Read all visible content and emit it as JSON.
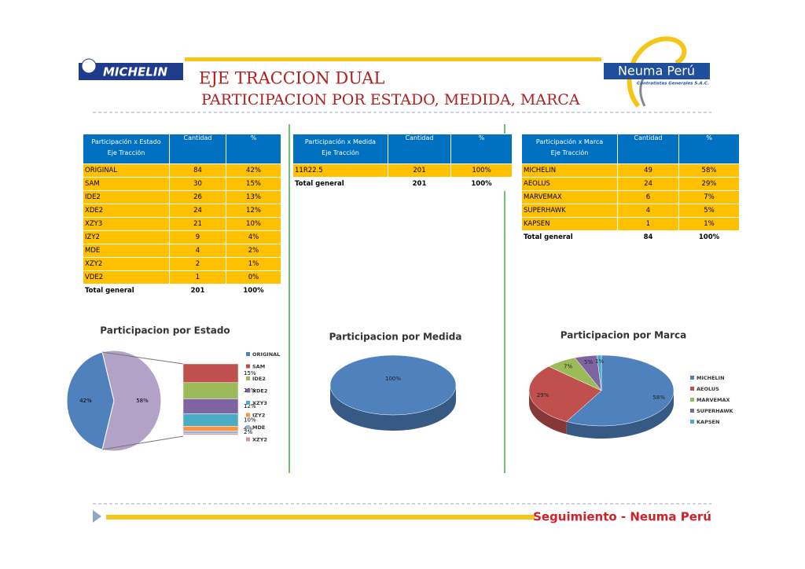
{
  "header": {
    "brand": "MICHELIN",
    "title_line1": "EJE TRACCION DUAL",
    "title_line2": "PARTICIPACION POR ESTADO, MEDIDA, MARCA",
    "company": "Neuma Perú",
    "company_sub": "Contratistas Generales S.A.C."
  },
  "tables": [
    {
      "label": "Participación x Estado",
      "sublabel": "Eje Tracción",
      "columns": [
        "Cantidad",
        "%"
      ],
      "rows": [
        [
          "ORIGINAL",
          "84",
          "42%"
        ],
        [
          "SAM",
          "30",
          "15%"
        ],
        [
          "IDE2",
          "26",
          "13%"
        ],
        [
          "XDE2",
          "24",
          "12%"
        ],
        [
          "XZY3",
          "21",
          "10%"
        ],
        [
          "IZY2",
          "9",
          "4%"
        ],
        [
          "MDE",
          "4",
          "2%"
        ],
        [
          "XZY2",
          "2",
          "1%"
        ],
        [
          "VDE2",
          "1",
          "0%"
        ]
      ],
      "total": [
        "Total general",
        "201",
        "100%"
      ]
    },
    {
      "label": "Participación x Medida",
      "sublabel": "Eje Tracción",
      "columns": [
        "Cantidad",
        "%"
      ],
      "rows": [
        [
          "11R22.5",
          "201",
          "100%"
        ]
      ],
      "total": [
        "Total general",
        "201",
        "100%"
      ]
    },
    {
      "label": "Participación x Marca",
      "sublabel": "Eje Tracción",
      "columns": [
        "Cantidad",
        "%"
      ],
      "rows": [
        [
          "MICHELIN",
          "49",
          "58%"
        ],
        [
          "AEOLUS",
          "24",
          "29%"
        ],
        [
          "MARVEMAX",
          "6",
          "7%"
        ],
        [
          "SUPERHAWK",
          "4",
          "5%"
        ],
        [
          "KAPSEN",
          "1",
          "1%"
        ]
      ],
      "total": [
        "Total general",
        "84",
        "100%"
      ]
    }
  ],
  "chart_data": [
    {
      "type": "bar-of-pie",
      "title": "Participacion por Estado",
      "categories": [
        "ORIGINAL",
        "SAM",
        "IDE2",
        "XDE2",
        "XZY3",
        "IZY2",
        "MDE",
        "XZY2"
      ],
      "colors": [
        "#4f81bd",
        "#c0504d",
        "#9bbb59",
        "#8064a2",
        "#4bacc6",
        "#f79646",
        "#95b3d7",
        "#d99694"
      ],
      "values": [
        42,
        15,
        13,
        12,
        10,
        4,
        2,
        1
      ],
      "value_labels": [
        "42%",
        "15%",
        "13%",
        "12%",
        "10%",
        "4%",
        "2%",
        null
      ],
      "secondary_total": 58,
      "secondary_total_label": "58%",
      "secondary_color": "#b3a2c7",
      "legend": "right"
    },
    {
      "type": "pie3d",
      "title": "Participacion por Medida",
      "categories": [
        "11R22.5"
      ],
      "colors": [
        "#4f81bd"
      ],
      "values": [
        100
      ],
      "value_labels": [
        "100%"
      ],
      "legend": "none"
    },
    {
      "type": "pie3d",
      "title": "Participacion por Marca",
      "categories": [
        "MICHELIN",
        "AEOLUS",
        "MARVEMAX",
        "SUPERHAWK",
        "KAPSEN"
      ],
      "colors": [
        "#4f81bd",
        "#c0504d",
        "#9bbb59",
        "#8064a2",
        "#4bacc6"
      ],
      "values": [
        58,
        29,
        7,
        5,
        1
      ],
      "value_labels": [
        "58%",
        "29%",
        "7%",
        "5%",
        "1%"
      ],
      "legend": "right"
    }
  ],
  "footer": {
    "text": "Seguimiento - Neuma Perú"
  }
}
